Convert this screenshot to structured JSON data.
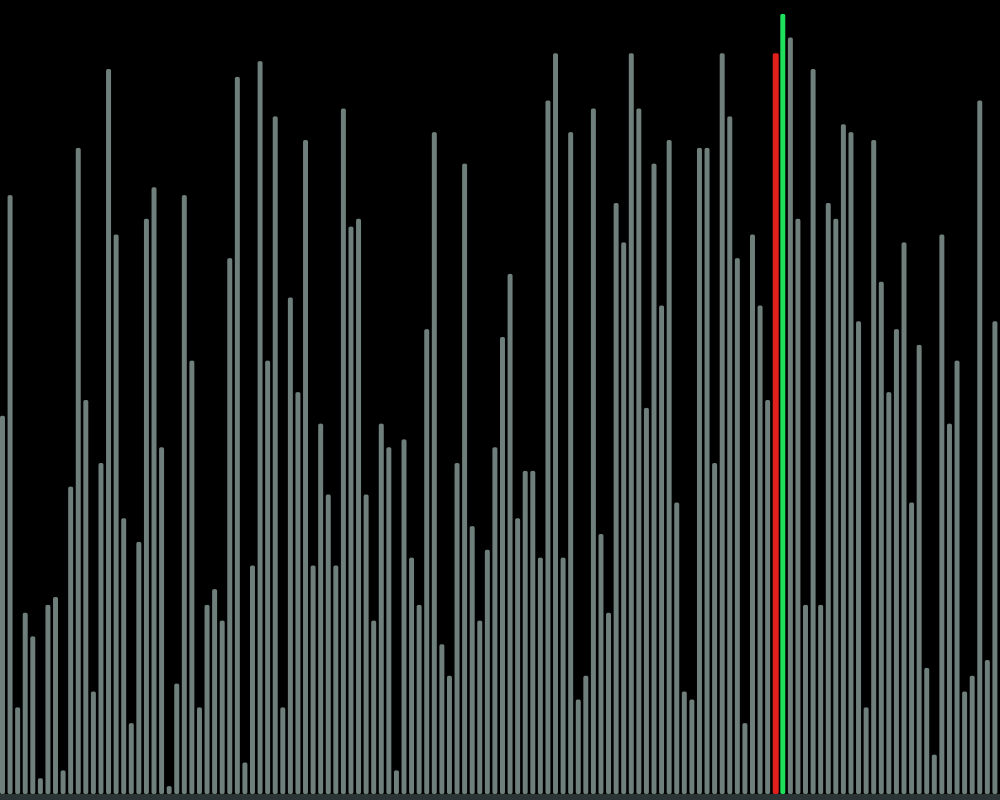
{
  "visualizer": {
    "colors": {
      "background": "#000000",
      "bar": "#6f7f7b",
      "compare": "#e0201c",
      "swap": "#1fe05a",
      "baseline": "#2a3434"
    },
    "max_value": 100,
    "bar_values": [
      48,
      76,
      11,
      23,
      20,
      2,
      24,
      25,
      3,
      39,
      82,
      50,
      13,
      42,
      92,
      71,
      35,
      9,
      32,
      73,
      77,
      44,
      1,
      14,
      76,
      55,
      11,
      24,
      26,
      22,
      68,
      91,
      4,
      29,
      93,
      55,
      86,
      11,
      63,
      51,
      83,
      29,
      47,
      38,
      29,
      87,
      72,
      73,
      38,
      22,
      47,
      44,
      3,
      45,
      30,
      24,
      59,
      84,
      19,
      15,
      42,
      80,
      34,
      22,
      31,
      44,
      58,
      66,
      35,
      41,
      41,
      30,
      88,
      94,
      30,
      84,
      12,
      15,
      87,
      33,
      23,
      75,
      70,
      94,
      87,
      49,
      80,
      62,
      83,
      37,
      13,
      12,
      82,
      82,
      42,
      94,
      86,
      68,
      9,
      71,
      62,
      50,
      94,
      99,
      96,
      73,
      24,
      92,
      24,
      75,
      73,
      85,
      84,
      60,
      11,
      83,
      65,
      51,
      59,
      70,
      37,
      57,
      16,
      5,
      71,
      47,
      55,
      13,
      15,
      88,
      17,
      60
    ],
    "compare_index": 102,
    "swap_index": 103
  }
}
